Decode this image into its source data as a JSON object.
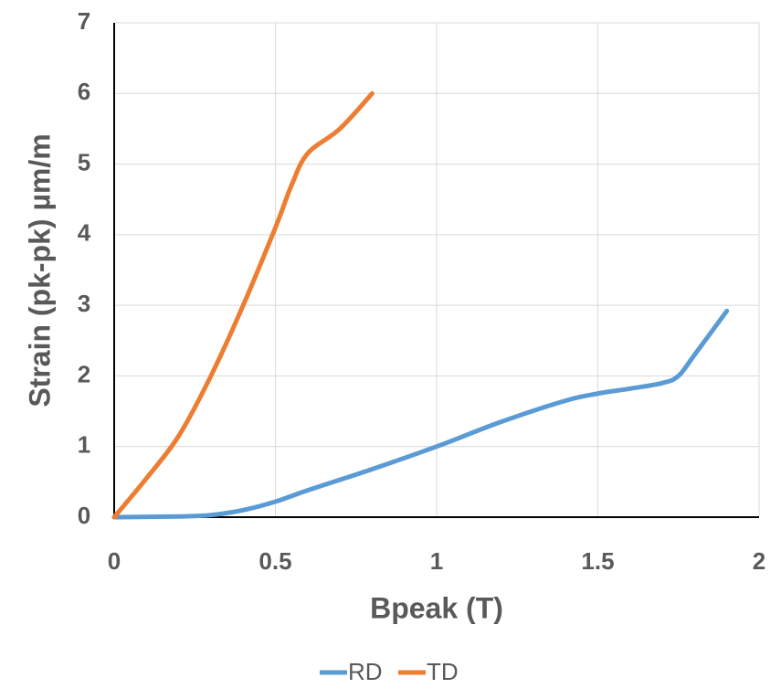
{
  "chart_data": {
    "type": "line",
    "x_label": "Bpeak (T)",
    "y_label": "Strain (pk-pk) µm/m",
    "xlim": [
      0,
      2
    ],
    "xticks": [
      0,
      0.5,
      1,
      1.5,
      2
    ],
    "ylim": [
      0,
      7
    ],
    "yticks": [
      0,
      1,
      2,
      3,
      4,
      5,
      6,
      7
    ],
    "grid": true,
    "legend": "bottom",
    "series": [
      {
        "name": "RD",
        "color": "#5b9bd5",
        "x": [
          0,
          0.2,
          0.3,
          0.4,
          0.5,
          0.6,
          0.8,
          1.0,
          1.2,
          1.4,
          1.5,
          1.6,
          1.7,
          1.75,
          1.8,
          1.9
        ],
        "values": [
          0,
          0.01,
          0.03,
          0.1,
          0.22,
          0.38,
          0.68,
          1.0,
          1.35,
          1.65,
          1.75,
          1.82,
          1.9,
          2.0,
          2.3,
          2.92
        ]
      },
      {
        "name": "TD",
        "color": "#ed7d31",
        "x": [
          0,
          0.1,
          0.2,
          0.3,
          0.4,
          0.5,
          0.55,
          0.6,
          0.7,
          0.8
        ],
        "values": [
          0,
          0.55,
          1.15,
          2.0,
          3.0,
          4.1,
          4.7,
          5.15,
          5.5,
          6.0
        ]
      }
    ]
  }
}
